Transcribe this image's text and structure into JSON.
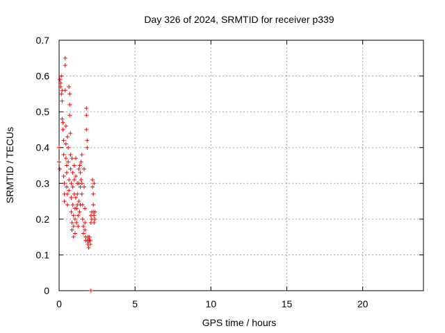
{
  "chart_data": {
    "type": "scatter",
    "title": "Day 326 of 2024, SRMTID for receiver p339",
    "xlabel": "GPS time / hours",
    "ylabel": "SRMTID / TECUs",
    "xlim": [
      0,
      24
    ],
    "ylim": [
      0,
      0.7
    ],
    "xticks": [
      0,
      5,
      10,
      15,
      20
    ],
    "yticks": [
      0,
      0.1,
      0.2,
      0.3,
      0.4,
      0.5,
      0.6,
      0.7
    ],
    "xtick_labels": [
      "0",
      "5",
      "10",
      "15",
      "20"
    ],
    "ytick_labels": [
      "0",
      "0.1",
      "0.2",
      "0.3",
      "0.4",
      "0.5",
      "0.6",
      "0.7"
    ],
    "grid": true,
    "marker": "+",
    "color": "#ff0000",
    "series": [
      {
        "name": "SRMTID",
        "points": [
          [
            0.0,
            0.4
          ],
          [
            0.0,
            0.36
          ],
          [
            0.05,
            0.34
          ],
          [
            0.05,
            0.59
          ],
          [
            0.1,
            0.58
          ],
          [
            0.1,
            0.57
          ],
          [
            0.15,
            0.6
          ],
          [
            0.15,
            0.55
          ],
          [
            0.2,
            0.56
          ],
          [
            0.2,
            0.53
          ],
          [
            0.2,
            0.48
          ],
          [
            0.25,
            0.47
          ],
          [
            0.25,
            0.45
          ],
          [
            0.3,
            0.42
          ],
          [
            0.3,
            0.38
          ],
          [
            0.3,
            0.32
          ],
          [
            0.35,
            0.3
          ],
          [
            0.35,
            0.27
          ],
          [
            0.35,
            0.25
          ],
          [
            0.4,
            0.63
          ],
          [
            0.4,
            0.65
          ],
          [
            0.4,
            0.56
          ],
          [
            0.45,
            0.46
          ],
          [
            0.45,
            0.41
          ],
          [
            0.45,
            0.37
          ],
          [
            0.5,
            0.35
          ],
          [
            0.5,
            0.33
          ],
          [
            0.5,
            0.29
          ],
          [
            0.55,
            0.27
          ],
          [
            0.55,
            0.24
          ],
          [
            0.55,
            0.43
          ],
          [
            0.6,
            0.4
          ],
          [
            0.6,
            0.36
          ],
          [
            0.65,
            0.31
          ],
          [
            0.65,
            0.28
          ],
          [
            0.65,
            0.57
          ],
          [
            0.7,
            0.55
          ],
          [
            0.7,
            0.52
          ],
          [
            0.7,
            0.49
          ],
          [
            0.75,
            0.44
          ],
          [
            0.75,
            0.38
          ],
          [
            0.75,
            0.34
          ],
          [
            0.8,
            0.3
          ],
          [
            0.8,
            0.26
          ],
          [
            0.8,
            0.22
          ],
          [
            0.85,
            0.19
          ],
          [
            0.85,
            0.17
          ],
          [
            0.85,
            0.37
          ],
          [
            0.9,
            0.33
          ],
          [
            0.9,
            0.29
          ],
          [
            0.9,
            0.24
          ],
          [
            0.95,
            0.21
          ],
          [
            0.95,
            0.18
          ],
          [
            0.95,
            0.15
          ],
          [
            1.0,
            0.35
          ],
          [
            1.0,
            0.31
          ],
          [
            1.0,
            0.27
          ],
          [
            1.05,
            0.23
          ],
          [
            1.05,
            0.2
          ],
          [
            1.05,
            0.16
          ],
          [
            1.1,
            0.37
          ],
          [
            1.1,
            0.32
          ],
          [
            1.1,
            0.26
          ],
          [
            1.15,
            0.23
          ],
          [
            1.15,
            0.19
          ],
          [
            1.2,
            0.3
          ],
          [
            1.2,
            0.27
          ],
          [
            1.2,
            0.24
          ],
          [
            1.25,
            0.21
          ],
          [
            1.25,
            0.18
          ],
          [
            1.3,
            0.34
          ],
          [
            1.3,
            0.3
          ],
          [
            1.3,
            0.25
          ],
          [
            1.35,
            0.22
          ],
          [
            1.35,
            0.35
          ],
          [
            1.4,
            0.33
          ],
          [
            1.4,
            0.29
          ],
          [
            1.4,
            0.24
          ],
          [
            1.45,
            0.36
          ],
          [
            1.45,
            0.31
          ],
          [
            1.5,
            0.38
          ],
          [
            1.5,
            0.3
          ],
          [
            1.5,
            0.27
          ],
          [
            1.55,
            0.24
          ],
          [
            1.55,
            0.2
          ],
          [
            1.6,
            0.18
          ],
          [
            1.6,
            0.16
          ],
          [
            1.65,
            0.34
          ],
          [
            1.65,
            0.29
          ],
          [
            1.7,
            0.23
          ],
          [
            1.7,
            0.19
          ],
          [
            1.7,
            0.17
          ],
          [
            1.75,
            0.15
          ],
          [
            1.75,
            0.14
          ],
          [
            1.8,
            0.51
          ],
          [
            1.8,
            0.49
          ],
          [
            1.8,
            0.45
          ],
          [
            1.85,
            0.42
          ],
          [
            1.85,
            0.4
          ],
          [
            1.85,
            0.14
          ],
          [
            1.9,
            0.13
          ],
          [
            1.9,
            0.15
          ],
          [
            1.95,
            0.14
          ],
          [
            1.95,
            0.12
          ],
          [
            2.0,
            0.14
          ],
          [
            2.0,
            0.15
          ],
          [
            2.05,
            0.13
          ],
          [
            2.05,
            0.14
          ],
          [
            2.1,
            0.21
          ],
          [
            2.1,
            0.19
          ],
          [
            2.15,
            0.22
          ],
          [
            2.15,
            0.2
          ],
          [
            2.2,
            0.31
          ],
          [
            2.2,
            0.29
          ],
          [
            2.25,
            0.27
          ],
          [
            2.25,
            0.24
          ],
          [
            2.25,
            0.22
          ],
          [
            2.3,
            0.3
          ],
          [
            2.3,
            0.21
          ],
          [
            2.3,
            0.19
          ],
          [
            2.35,
            0.22
          ],
          [
            2.35,
            0.2
          ],
          [
            2.1,
            0.0
          ]
        ]
      }
    ]
  }
}
